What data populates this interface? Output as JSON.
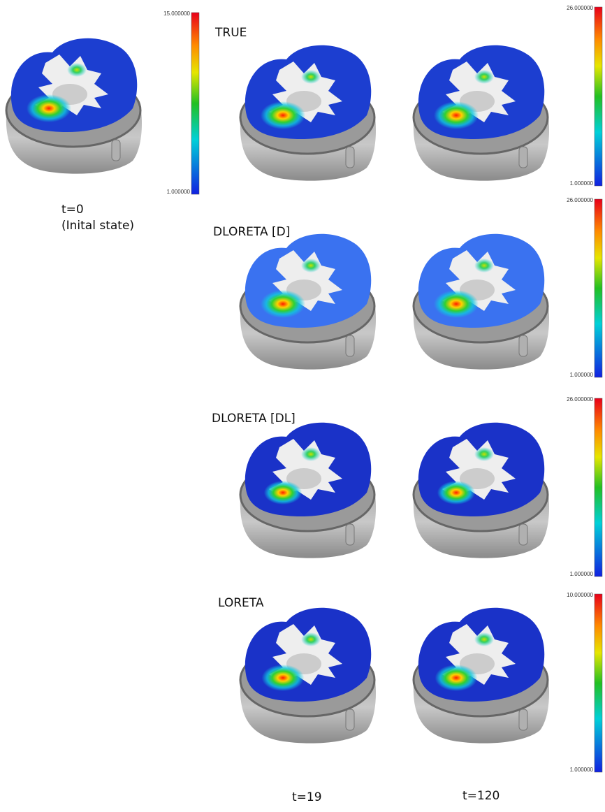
{
  "initial": {
    "time": "t=0",
    "note": "(Inital state)",
    "colorbar": {
      "max": "15.000000",
      "min": "1.000000"
    }
  },
  "panels": [
    {
      "label": "TRUE",
      "colorbar": {
        "max": "26.000000",
        "min": "1.000000"
      }
    },
    {
      "label": "DLORETA [D]",
      "colorbar": {
        "max": "26.000000",
        "min": "1.000000"
      }
    },
    {
      "label": "DLORETA [DL]",
      "colorbar": {
        "max": "26.000000",
        "min": "1.000000"
      }
    },
    {
      "label": "LORETA",
      "colorbar": {
        "max": "10.000000",
        "min": "1.000000"
      }
    }
  ],
  "columns": [
    "t=19",
    "t=120"
  ]
}
